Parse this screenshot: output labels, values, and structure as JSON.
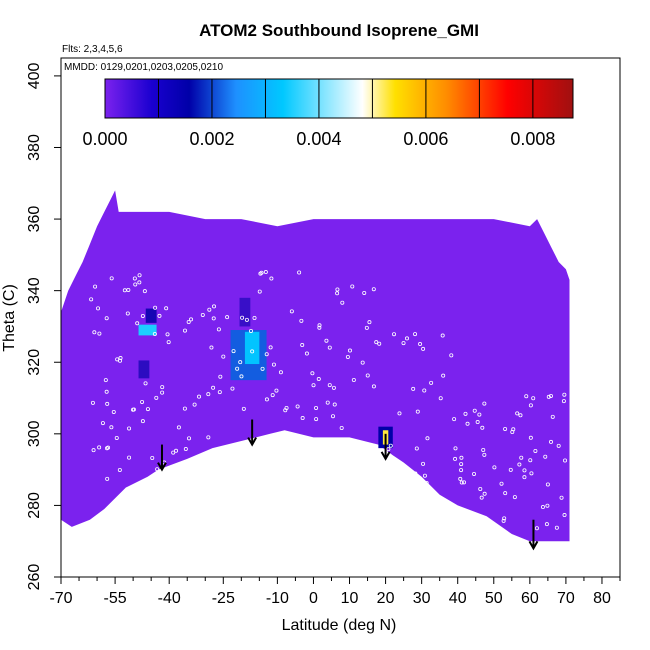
{
  "chart_data": {
    "type": "heatmap",
    "title": "ATOM2 Southbound Isoprene_GMI",
    "flights_note": "Flts: 2,3,4,5,6",
    "dates_note": "MMDD: 0129,0201,0203,0205,0210",
    "xlabel": "Latitude (deg N)",
    "ylabel": "Theta (C)",
    "xlim": [
      -70,
      85
    ],
    "ylim": [
      260,
      405
    ],
    "x_ticks": [
      -70,
      -55,
      -40,
      -25,
      -10,
      0,
      10,
      20,
      30,
      40,
      50,
      60,
      70,
      80
    ],
    "x_tick_labels": [
      "-70",
      "-55",
      "-40",
      "-25",
      "-10",
      "0",
      "10",
      "20",
      "30",
      "40",
      "50",
      "60",
      "70",
      "80"
    ],
    "x_minor_ticks": [
      -65,
      -60,
      -50,
      -45,
      -35,
      -30,
      -20,
      -15,
      -5,
      5,
      15,
      25,
      35,
      45,
      55,
      65,
      75,
      85
    ],
    "y_ticks": [
      260,
      280,
      300,
      320,
      340,
      360,
      380,
      400
    ],
    "y_tick_labels": [
      "260",
      "280",
      "300",
      "320",
      "340",
      "360",
      "380",
      "400"
    ],
    "colorbar": {
      "range": [
        0,
        0.00875
      ],
      "tick_values": [
        0.0,
        0.002,
        0.004,
        0.006,
        0.008
      ],
      "tick_labels": [
        "0.000",
        "0.002",
        "0.004",
        "0.006",
        "0.008"
      ],
      "color_stops": [
        "#7b22ee",
        "#0000a8",
        "#1e90ff",
        "#00c8ff",
        "#ffffff",
        "#ffe000",
        "#ff8c00",
        "#ff0000",
        "#a01010"
      ]
    },
    "background_value": 0.0,
    "coverage_upper": [
      [
        -70,
        334
      ],
      [
        -68,
        340
      ],
      [
        -66,
        344
      ],
      [
        -64,
        348
      ],
      [
        -62,
        353
      ],
      [
        -60,
        358
      ],
      [
        -58,
        362
      ],
      [
        -56,
        366
      ],
      [
        -55,
        368
      ],
      [
        -54,
        362
      ],
      [
        -40,
        362
      ],
      [
        -30,
        360
      ],
      [
        -20,
        360
      ],
      [
        -10,
        358
      ],
      [
        0,
        360
      ],
      [
        10,
        360
      ],
      [
        20,
        360
      ],
      [
        30,
        360
      ],
      [
        40,
        360
      ],
      [
        50,
        360
      ],
      [
        60,
        358
      ],
      [
        62,
        360
      ],
      [
        64,
        356
      ],
      [
        66,
        352
      ],
      [
        68,
        348
      ],
      [
        70,
        346
      ],
      [
        71,
        343
      ]
    ],
    "coverage_lower": [
      [
        71,
        270
      ],
      [
        60,
        270
      ],
      [
        55,
        272
      ],
      [
        48,
        277
      ],
      [
        40,
        280
      ],
      [
        35,
        283
      ],
      [
        30,
        288
      ],
      [
        25,
        292
      ],
      [
        22,
        294
      ],
      [
        18,
        297
      ],
      [
        10,
        299
      ],
      [
        0,
        299
      ],
      [
        -8,
        301
      ],
      [
        -12,
        300
      ],
      [
        -20,
        298
      ],
      [
        -28,
        296
      ],
      [
        -35,
        293
      ],
      [
        -43,
        290
      ],
      [
        -46,
        288
      ],
      [
        -52,
        285
      ],
      [
        -58,
        279
      ],
      [
        -62,
        276
      ],
      [
        -67,
        274
      ],
      [
        -70,
        276
      ]
    ],
    "hotspots": [
      {
        "lat": -18,
        "theta": 322,
        "w_lat": 10,
        "h_theta": 14,
        "value": 0.0018
      },
      {
        "lat": -17,
        "theta": 324,
        "w_lat": 4,
        "h_theta": 9,
        "value": 0.0032
      },
      {
        "lat": -19,
        "theta": 334,
        "w_lat": 3,
        "h_theta": 8,
        "value": 0.0006
      },
      {
        "lat": -46,
        "theta": 329,
        "w_lat": 5,
        "h_theta": 3,
        "value": 0.0034
      },
      {
        "lat": -45,
        "theta": 333,
        "w_lat": 3,
        "h_theta": 4,
        "value": 0.0009
      },
      {
        "lat": -47,
        "theta": 318,
        "w_lat": 3,
        "h_theta": 5,
        "value": 0.0007
      },
      {
        "lat": 20,
        "theta": 299,
        "w_lat": 4,
        "h_theta": 6,
        "value": 0.0011
      },
      {
        "lat": 20,
        "theta": 299,
        "w_lat": 1.5,
        "h_theta": 4,
        "value": 0.0052
      }
    ],
    "arrows": [
      {
        "lat": -42,
        "theta_top": 297,
        "theta_bottom": 290
      },
      {
        "lat": -17,
        "theta_top": 304,
        "theta_bottom": 297
      },
      {
        "lat": 20,
        "theta_top": 300,
        "theta_bottom": 293
      },
      {
        "lat": 61,
        "theta_top": 276,
        "theta_bottom": 268
      }
    ],
    "sample_clusters": [
      {
        "lat": [
          -62,
          -50
        ],
        "theta": [
          285,
          345
        ],
        "count": 30
      },
      {
        "lat": [
          -50,
          -35
        ],
        "theta": [
          290,
          345
        ],
        "count": 30
      },
      {
        "lat": [
          -35,
          -20
        ],
        "theta": [
          298,
          338
        ],
        "count": 22
      },
      {
        "lat": [
          -20,
          0
        ],
        "theta": [
          302,
          346
        ],
        "count": 30
      },
      {
        "lat": [
          0,
          20
        ],
        "theta": [
          300,
          345
        ],
        "count": 30
      },
      {
        "lat": [
          20,
          40
        ],
        "theta": [
          284,
          330
        ],
        "count": 30
      },
      {
        "lat": [
          40,
          58
        ],
        "theta": [
          275,
          316
        ],
        "count": 34
      },
      {
        "lat": [
          58,
          70
        ],
        "theta": [
          272,
          312
        ],
        "count": 26
      }
    ]
  }
}
